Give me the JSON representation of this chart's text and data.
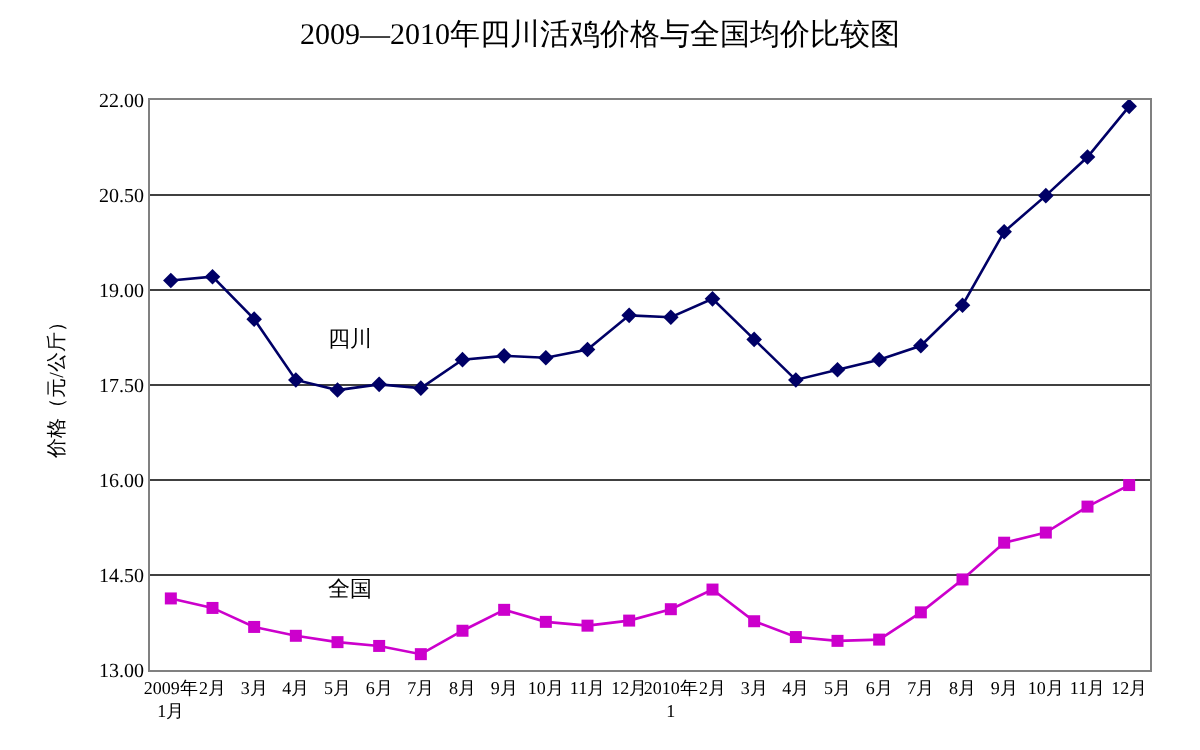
{
  "chart_data": {
    "type": "line",
    "title": "2009—2010年四川活鸡价格与全国均价比较图",
    "ylabel": "价格（元/公斤）",
    "categories": [
      "2009年1月",
      "2月",
      "3月",
      "4月",
      "5月",
      "6月",
      "7月",
      "8月",
      "9月",
      "10月",
      "11月",
      "12月",
      "2010年1",
      "2月",
      "3月",
      "4月",
      "5月",
      "6月",
      "7月",
      "8月",
      "9月",
      "10月",
      "11月",
      "12月"
    ],
    "series": [
      {
        "name": "四川",
        "color": "#000066",
        "marker": "diamond",
        "values": [
          19.15,
          19.21,
          18.54,
          17.58,
          17.42,
          17.51,
          17.45,
          17.9,
          17.96,
          17.93,
          18.06,
          18.6,
          18.57,
          18.86,
          18.22,
          17.58,
          17.74,
          17.9,
          18.12,
          18.76,
          19.92,
          20.49,
          21.1,
          21.9
        ]
      },
      {
        "name": "全国",
        "color": "#cc00cc",
        "marker": "square",
        "values": [
          14.13,
          13.98,
          13.68,
          13.54,
          13.44,
          13.38,
          13.25,
          13.62,
          13.95,
          13.76,
          13.7,
          13.78,
          13.96,
          14.27,
          13.77,
          13.52,
          13.46,
          13.48,
          13.91,
          14.43,
          15.01,
          15.17,
          15.58,
          15.92
        ]
      }
    ],
    "ylim": [
      13,
      22
    ],
    "yticks": [
      {
        "value": 13,
        "label": "13.00"
      },
      {
        "value": 14.5,
        "label": "14.50"
      },
      {
        "value": 16,
        "label": "16.00"
      },
      {
        "value": 17.5,
        "label": "17.50"
      },
      {
        "value": 19,
        "label": "19.00"
      },
      {
        "value": 20.5,
        "label": "20.50"
      },
      {
        "value": 22,
        "label": "22.00"
      }
    ],
    "grid": "y",
    "legend": false
  }
}
